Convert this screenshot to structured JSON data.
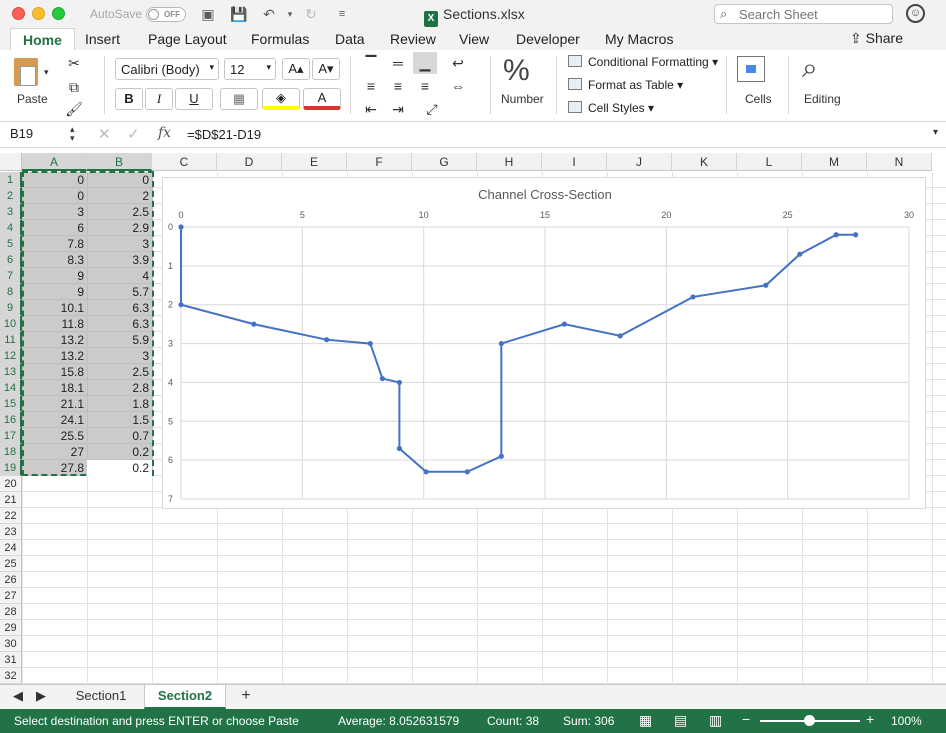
{
  "window": {
    "autosave_label": "AutoSave",
    "autosave_state": "OFF",
    "title": "Sections.xlsx",
    "search_placeholder": "Search Sheet"
  },
  "tabs": [
    "Home",
    "Insert",
    "Page Layout",
    "Formulas",
    "Data",
    "Review",
    "View",
    "Developer",
    "My Macros"
  ],
  "share_label": "Share",
  "ribbon": {
    "paste_label": "Paste",
    "font_name": "Calibri (Body)",
    "font_size": "12",
    "bold": "B",
    "italic": "I",
    "underline": "U",
    "number_label": "Number",
    "conditional_formatting": "Conditional Formatting",
    "format_as_table": "Format as Table",
    "cell_styles": "Cell Styles",
    "cells_label": "Cells",
    "editing_label": "Editing"
  },
  "formula_bar": {
    "name_box": "B19",
    "fx": "fx",
    "formula": "=$D$21-D19"
  },
  "columns": [
    "A",
    "B",
    "C",
    "D",
    "E",
    "F",
    "G",
    "H",
    "I",
    "J",
    "K",
    "L",
    "M",
    "N"
  ],
  "rows": [
    "1",
    "2",
    "3",
    "4",
    "5",
    "6",
    "7",
    "8",
    "9",
    "10",
    "11",
    "12",
    "13",
    "14",
    "15",
    "16",
    "17",
    "18",
    "19",
    "20",
    "21",
    "22",
    "23",
    "24",
    "25",
    "26",
    "27",
    "28",
    "29",
    "30",
    "31",
    "32"
  ],
  "cells": {
    "A": [
      "0",
      "0",
      "3",
      "6",
      "7.8",
      "8.3",
      "9",
      "9",
      "10.1",
      "11.8",
      "13.2",
      "13.2",
      "15.8",
      "18.1",
      "21.1",
      "24.1",
      "25.5",
      "27",
      "27.8"
    ],
    "B": [
      "0",
      "2",
      "2.5",
      "2.9",
      "3",
      "3.9",
      "4",
      "5.7",
      "6.3",
      "6.3",
      "5.9",
      "3",
      "2.5",
      "2.8",
      "1.8",
      "1.5",
      "0.7",
      "0.2",
      "0.2"
    ]
  },
  "chart_data": {
    "type": "scatter",
    "title": "Channel Cross-Section",
    "x": [
      0,
      0,
      3,
      6,
      7.8,
      8.3,
      9,
      9,
      10.1,
      11.8,
      13.2,
      13.2,
      15.8,
      18.1,
      21.1,
      24.1,
      25.5,
      27,
      27.8
    ],
    "y": [
      0,
      2,
      2.5,
      2.9,
      3,
      3.9,
      4,
      5.7,
      6.3,
      6.3,
      5.9,
      3,
      2.5,
      2.8,
      1.8,
      1.5,
      0.7,
      0.2,
      0.2
    ],
    "xlim": [
      0,
      30
    ],
    "ylim": [
      0,
      7
    ],
    "x_ticks": [
      "0",
      "5",
      "10",
      "15",
      "20",
      "25",
      "30"
    ],
    "y_ticks": [
      "0",
      "1",
      "2",
      "3",
      "4",
      "5",
      "6",
      "7"
    ],
    "y_reversed": true,
    "x_axis_position": "top",
    "grid": true,
    "line_color": "#4472c4"
  },
  "sheets": [
    "Section1",
    "Section2"
  ],
  "active_sheet": "Section2",
  "status": {
    "message": "Select destination and press ENTER or choose Paste",
    "average": "Average: 8.052631579",
    "count": "Count: 38",
    "sum": "Sum: 306",
    "zoom": "100%"
  }
}
